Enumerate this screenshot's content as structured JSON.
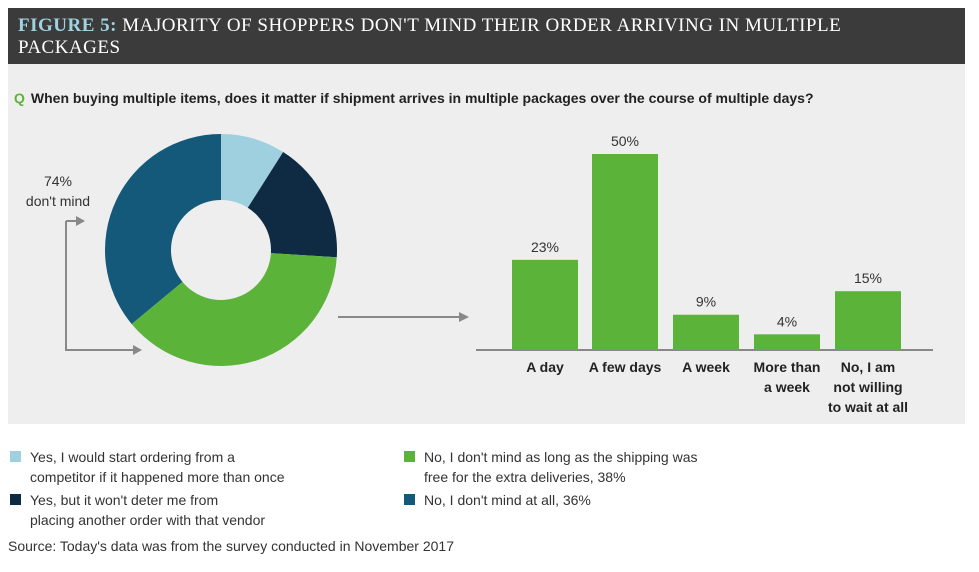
{
  "header": {
    "figure_label": "FIGURE 5:",
    "title": " MAJORITY OF SHOPPERS DON'T MIND THEIR ORDER ARRIVING IN MULTIPLE PACKAGES"
  },
  "question": {
    "marker": "Q",
    "text": "When buying multiple items, does it matter if shipment arrives in multiple packages over the course of multiple days?"
  },
  "colors": {
    "light_blue": "#9fd0e0",
    "navy": "#0f2a43",
    "green": "#5cb33a",
    "teal": "#14587a",
    "panel": "#eeeeee",
    "header": "#3b3b3b"
  },
  "chart_data": [
    {
      "type": "pie",
      "annotation": [
        "74%",
        "don't mind"
      ],
      "slices": [
        {
          "name": "Yes, I would start ordering from a competitor if it happened more than once",
          "value": 9,
          "color": "#9fd0e0"
        },
        {
          "name": "Yes, but it won't deter me from placing another order with that vendor",
          "value": 17,
          "color": "#0f2a43"
        },
        {
          "name": "No, I don't mind as long as the shipping was free for the extra deliveries, 38%",
          "value": 38,
          "color": "#5cb33a"
        },
        {
          "name": "No, I don't mind at all, 36%",
          "value": 36,
          "color": "#14587a"
        }
      ]
    },
    {
      "type": "bar",
      "categories": [
        [
          "A day"
        ],
        [
          "A few days"
        ],
        [
          "A week"
        ],
        [
          "More than",
          "a week"
        ],
        [
          "No, I am",
          "not willing",
          "to wait at all"
        ]
      ],
      "values": [
        23,
        50,
        9,
        4,
        15
      ],
      "data_labels": [
        "23%",
        "50%",
        "9%",
        "4%",
        "15%"
      ],
      "ylim": [
        0,
        50
      ],
      "color": "#5cb33a"
    }
  ],
  "legend": [
    {
      "lines": [
        "Yes, I would start ordering from a",
        "competitor if it happened more than once"
      ],
      "color": "#9fd0e0"
    },
    {
      "lines": [
        "Yes, but it won't deter me from",
        "placing another order with that vendor"
      ],
      "color": "#0f2a43"
    },
    {
      "lines": [
        "No, I don't mind as long as the shipping was",
        "free for the extra deliveries, 38%"
      ],
      "color": "#5cb33a"
    },
    {
      "lines": [
        "No, I don't mind at all, 36%"
      ],
      "color": "#14587a"
    }
  ],
  "source": "Source: Today's data was from the survey conducted in November 2017"
}
